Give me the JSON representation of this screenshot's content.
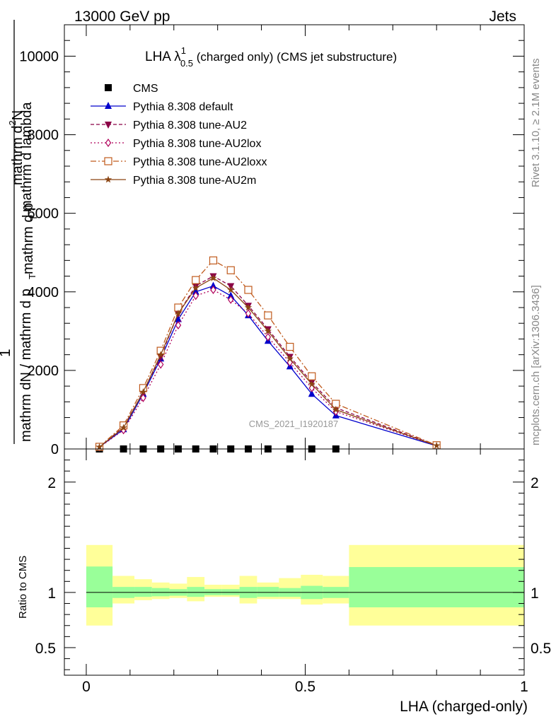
{
  "header": {
    "left": "13000 GeV pp",
    "right": "Jets"
  },
  "side_notes": {
    "rivet": "Rivet 3.1.10, ≥ 2.1M events",
    "mcplots": "mcplots.cern.ch [arXiv:1306.3436]"
  },
  "watermark": "CMS_2021_I1920187",
  "colors": {
    "cms": "#000000",
    "default": "#0000cc",
    "au2": "#8b0046",
    "au2lox": "#b0005a",
    "au2loxx": "#c05a1c",
    "au2m": "#8b4513",
    "band_outer": "#ffff99",
    "band_inner": "#99ff99"
  },
  "chart_data": [
    {
      "type": "line",
      "title_main": "LHA λ",
      "title_sup": "1",
      "title_sub": "0.5",
      "title_rest": " (charged only) (CMS jet substructure)",
      "ylabel_num_1": "1",
      "ylabel_num_2": "mathrm d",
      "ylabel_num_sup": "2",
      "ylabel_num_3": "N",
      "ylabel_den_1": "mathrm dN / mathrm d p",
      "ylabel_den_2": "mathrm d p",
      "ylabel_den_3": "mathrm d lambda",
      "ylabel_sub": "T",
      "xlim": [
        -0.05,
        1.0
      ],
      "ylim": [
        0,
        10800
      ],
      "yticks": [
        {
          "v": 0,
          "label": "0"
        },
        {
          "v": 2000,
          "label": "2000"
        },
        {
          "v": 4000,
          "label": "4000"
        },
        {
          "v": 6000,
          "label": "6000"
        },
        {
          "v": 8000,
          "label": "8000"
        },
        {
          "v": 10000,
          "label": "10000"
        }
      ],
      "x": [
        0.03,
        0.085,
        0.13,
        0.17,
        0.21,
        0.25,
        0.29,
        0.33,
        0.37,
        0.415,
        0.465,
        0.515,
        0.57,
        0.8
      ],
      "series": [
        {
          "name": "CMS",
          "key": "cms",
          "marker": "square-filled",
          "line": "none",
          "values": [
            0,
            0,
            0,
            0,
            0,
            0,
            0,
            0,
            0,
            0,
            0,
            0,
            0,
            null
          ]
        },
        {
          "name": "Pythia 8.308 default",
          "key": "default",
          "marker": "triangle-up-filled",
          "line": "solid",
          "values": [
            50,
            500,
            1400,
            2300,
            3300,
            4000,
            4150,
            3900,
            3400,
            2750,
            2100,
            1400,
            850,
            80
          ]
        },
        {
          "name": "Pythia 8.308 tune-AU2",
          "key": "au2",
          "marker": "triangle-down-filled",
          "line": "dashed",
          "values": [
            50,
            560,
            1450,
            2350,
            3450,
            4150,
            4400,
            4150,
            3650,
            3050,
            2350,
            1700,
            1050,
            90
          ]
        },
        {
          "name": "Pythia 8.308 tune-AU2lox",
          "key": "au2lox",
          "marker": "diamond-open",
          "line": "dotted",
          "values": [
            45,
            480,
            1300,
            2150,
            3150,
            3900,
            4050,
            3800,
            3450,
            2850,
            2200,
            1550,
            950,
            85
          ]
        },
        {
          "name": "Pythia 8.308 tune-AU2loxx",
          "key": "au2loxx",
          "marker": "square-open",
          "line": "dashdot",
          "values": [
            55,
            600,
            1550,
            2500,
            3600,
            4300,
            4800,
            4550,
            4050,
            3400,
            2600,
            1850,
            1150,
            95
          ]
        },
        {
          "name": "Pythia 8.308 tune-AU2m",
          "key": "au2m",
          "marker": "star",
          "line": "solid",
          "values": [
            50,
            540,
            1450,
            2400,
            3450,
            4100,
            4350,
            4050,
            3600,
            3000,
            2300,
            1650,
            1000,
            85
          ]
        }
      ]
    },
    {
      "type": "area",
      "ylabel": "Ratio to CMS",
      "xlabel": "LHA (charged-only)",
      "xlim": [
        -0.05,
        1.0
      ],
      "ylim": [
        0.25,
        2.3
      ],
      "xticks": [
        {
          "v": 0,
          "label": "0"
        },
        {
          "v": 0.5,
          "label": "0.5"
        },
        {
          "v": 1,
          "label": "1"
        }
      ],
      "yticks": [
        {
          "v": 0.5,
          "label": "0.5"
        },
        {
          "v": 1,
          "label": "1"
        },
        {
          "v": 2,
          "label": "2"
        }
      ],
      "reference_line": 1,
      "bins": [
        {
          "x0": 0.0,
          "x1": 0.06,
          "inner": [
            0.865,
            1.235
          ],
          "outer": [
            0.7,
            1.43
          ]
        },
        {
          "x0": 0.06,
          "x1": 0.11,
          "inner": [
            0.95,
            1.05
          ],
          "outer": [
            0.9,
            1.15
          ]
        },
        {
          "x0": 0.11,
          "x1": 0.15,
          "inner": [
            0.96,
            1.05
          ],
          "outer": [
            0.93,
            1.12
          ]
        },
        {
          "x0": 0.15,
          "x1": 0.19,
          "inner": [
            0.965,
            1.04
          ],
          "outer": [
            0.94,
            1.09
          ]
        },
        {
          "x0": 0.19,
          "x1": 0.23,
          "inner": [
            0.97,
            1.03
          ],
          "outer": [
            0.95,
            1.08
          ]
        },
        {
          "x0": 0.23,
          "x1": 0.27,
          "inner": [
            0.96,
            1.05
          ],
          "outer": [
            0.92,
            1.14
          ]
        },
        {
          "x0": 0.27,
          "x1": 0.31,
          "inner": [
            0.975,
            1.03
          ],
          "outer": [
            0.96,
            1.07
          ]
        },
        {
          "x0": 0.31,
          "x1": 0.35,
          "inner": [
            0.975,
            1.03
          ],
          "outer": [
            0.96,
            1.07
          ]
        },
        {
          "x0": 0.35,
          "x1": 0.39,
          "inner": [
            0.95,
            1.05
          ],
          "outer": [
            0.9,
            1.15
          ]
        },
        {
          "x0": 0.39,
          "x1": 0.44,
          "inner": [
            0.96,
            1.05
          ],
          "outer": [
            0.94,
            1.09
          ]
        },
        {
          "x0": 0.44,
          "x1": 0.49,
          "inner": [
            0.96,
            1.04
          ],
          "outer": [
            0.94,
            1.13
          ]
        },
        {
          "x0": 0.49,
          "x1": 0.54,
          "inner": [
            0.94,
            1.06
          ],
          "outer": [
            0.89,
            1.16
          ]
        },
        {
          "x0": 0.54,
          "x1": 0.6,
          "inner": [
            0.95,
            1.05
          ],
          "outer": [
            0.9,
            1.15
          ]
        },
        {
          "x0": 0.6,
          "x1": 1.0,
          "inner": [
            0.865,
            1.23
          ],
          "outer": [
            0.7,
            1.43
          ]
        }
      ]
    }
  ]
}
